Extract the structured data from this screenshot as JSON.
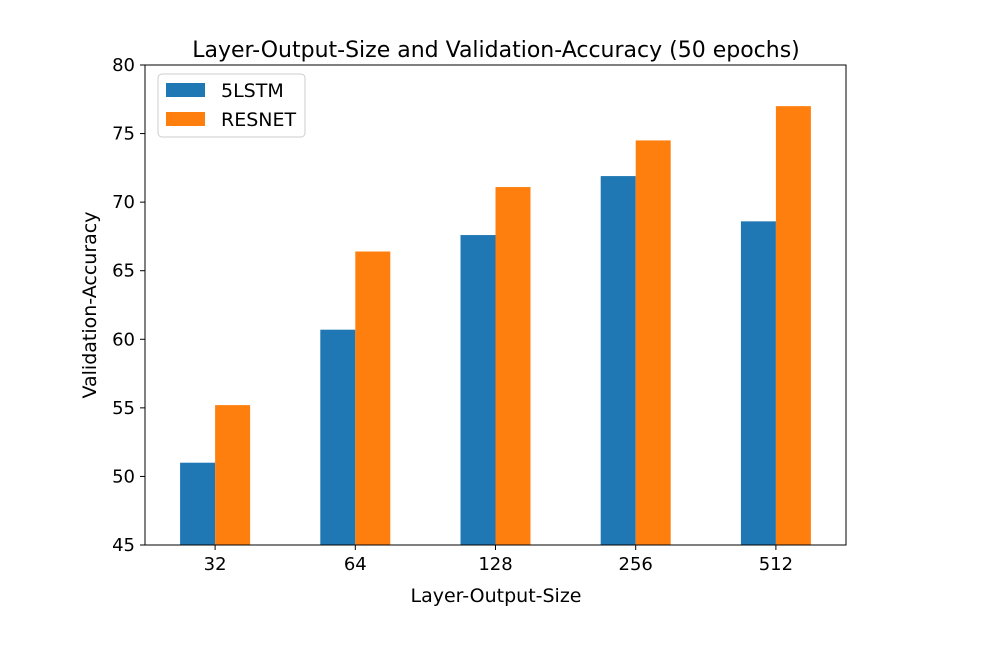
{
  "chart_data": {
    "type": "bar",
    "title": "Layer-Output-Size and Validation-Accuracy (50 epochs)",
    "xlabel": "Layer-Output-Size",
    "ylabel": "Validation-Accuracy",
    "categories": [
      "32",
      "64",
      "128",
      "256",
      "512"
    ],
    "series": [
      {
        "name": "5LSTM",
        "color": "#1f77b4",
        "values": [
          51.0,
          60.7,
          67.6,
          71.9,
          68.6
        ]
      },
      {
        "name": "RESNET",
        "color": "#ff7f0e",
        "values": [
          55.2,
          66.4,
          71.1,
          74.5,
          77.0
        ]
      }
    ],
    "ylim": [
      45,
      80
    ],
    "yticks": [
      45,
      50,
      55,
      60,
      65,
      70,
      75,
      80
    ],
    "grid": false,
    "legend_position": "top-left"
  }
}
